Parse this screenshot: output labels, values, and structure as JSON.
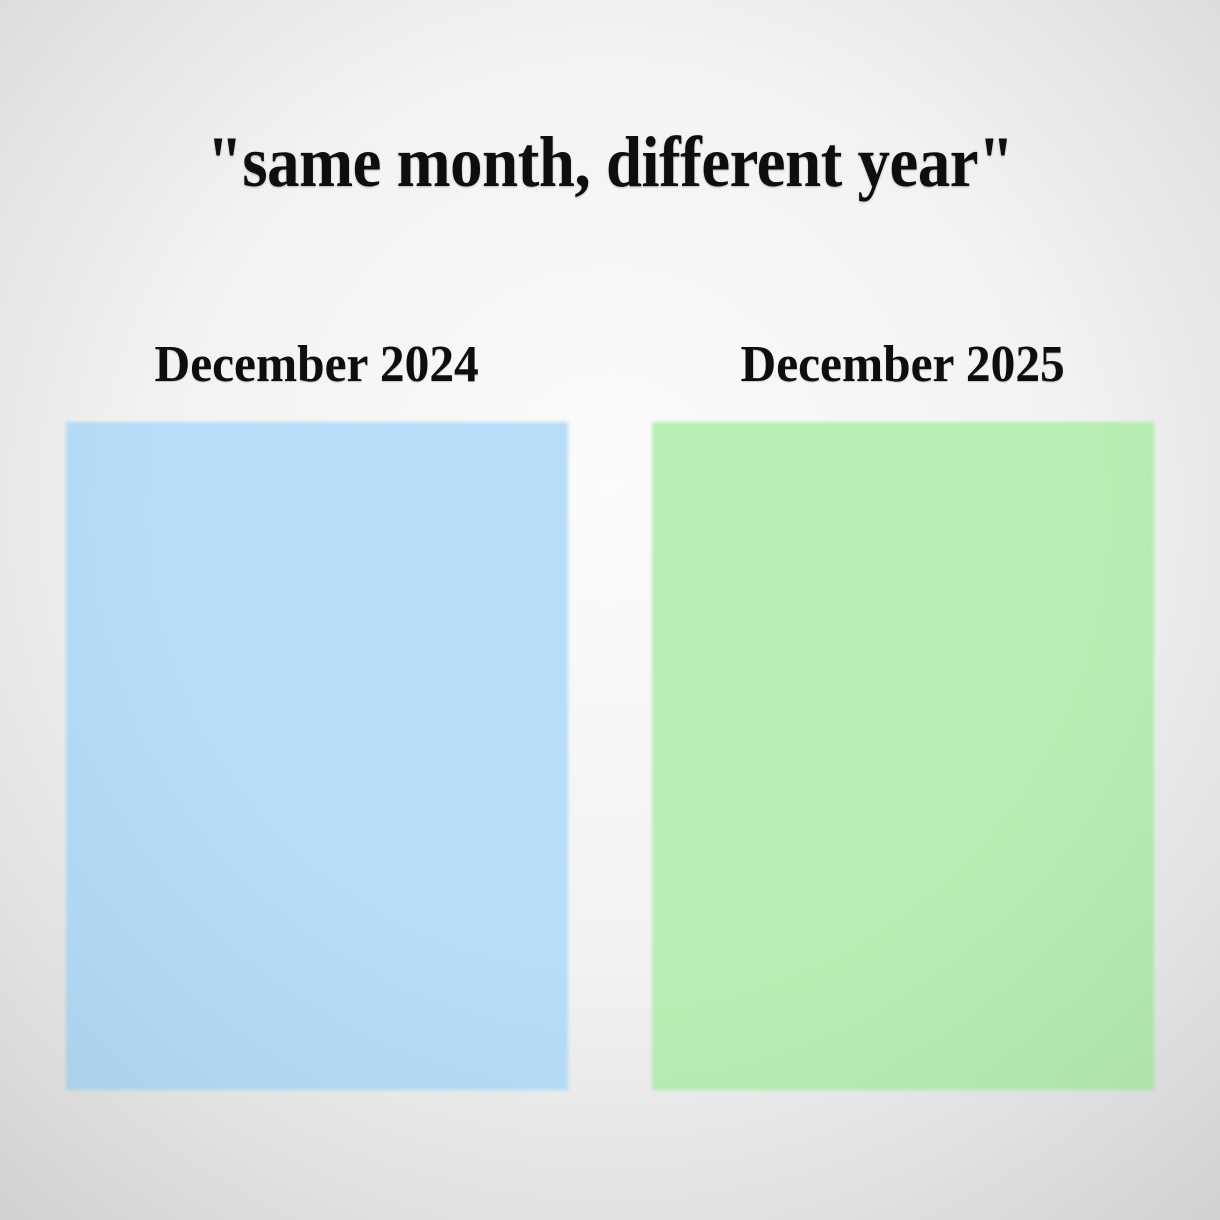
{
  "title": "\"same month, different year\"",
  "panels": [
    {
      "label": "December 2024",
      "color": "#b6def8"
    },
    {
      "label": "December 2025",
      "color": "#b7f0b4"
    }
  ],
  "colors": {
    "text": "#0e0e0e",
    "background_center": "#fbfbfb",
    "background_edge": "#d6d6d6"
  }
}
